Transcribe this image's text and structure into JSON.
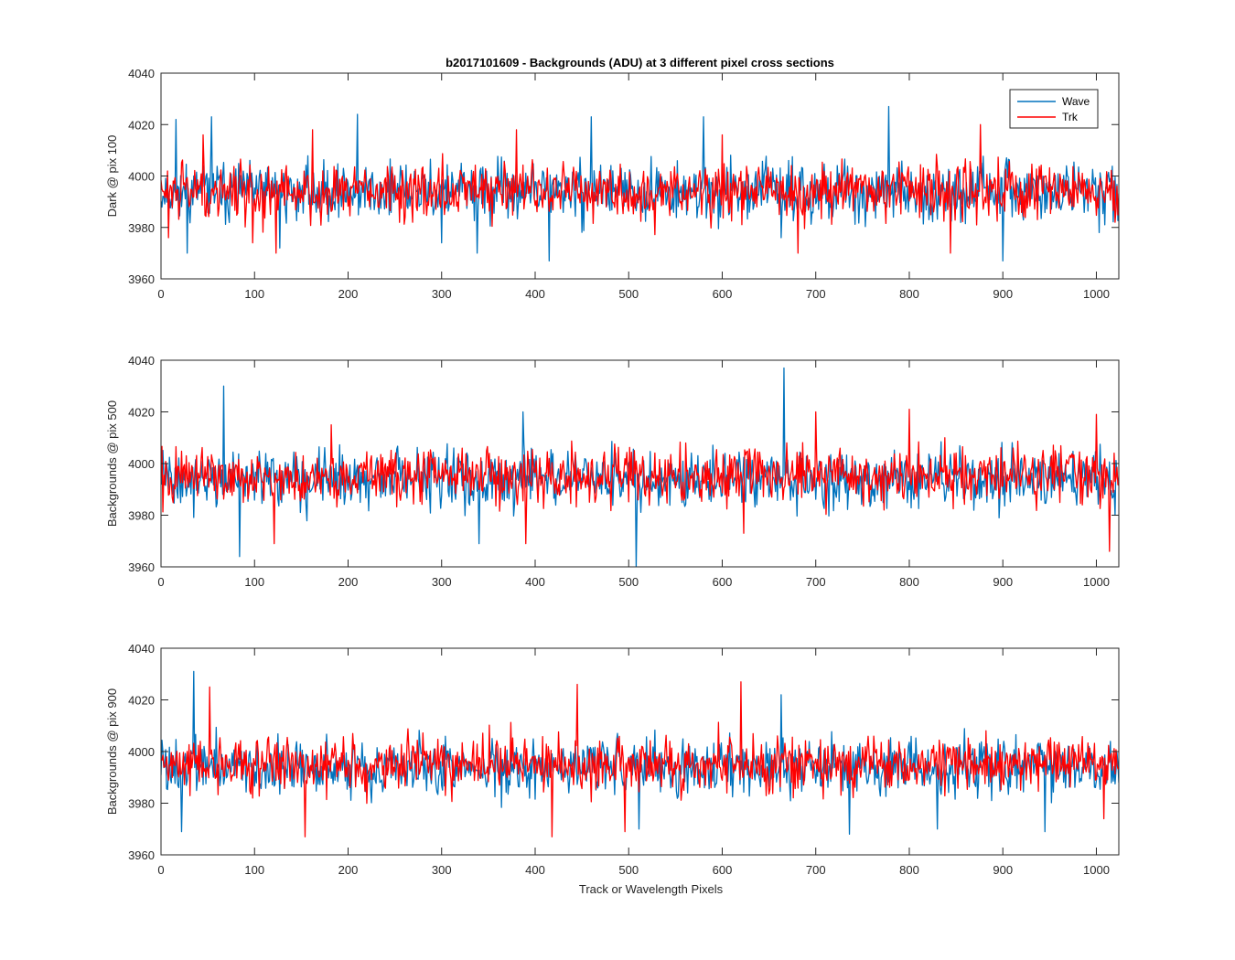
{
  "chart_data": [
    {
      "type": "line",
      "title": "b2017101609 - Backgrounds (ADU) at 3 different pixel cross sections",
      "xlabel": "",
      "ylabel": "Dark @ pix 100",
      "xlim": [
        0,
        1024
      ],
      "ylim": [
        3960,
        4040
      ],
      "xticks": [
        0,
        100,
        200,
        300,
        400,
        500,
        600,
        700,
        800,
        900,
        1000
      ],
      "yticks": [
        3960,
        3980,
        4000,
        4020,
        4040
      ],
      "grid": false,
      "legend_position": "top-right",
      "legend": [
        "Wave",
        "Trk"
      ],
      "series": [
        {
          "name": "Wave",
          "color": "#0072BD",
          "mean": 3994,
          "spread": 7,
          "seed": 11,
          "spikes": [
            [
              16,
              4022
            ],
            [
              28,
              3970
            ],
            [
              54,
              4023
            ],
            [
              127,
              3972
            ],
            [
              210,
              4024
            ],
            [
              300,
              3974
            ],
            [
              338,
              3970
            ],
            [
              415,
              3967
            ],
            [
              460,
              4023
            ],
            [
              580,
              4023
            ],
            [
              663,
              3976
            ],
            [
              778,
              4027
            ],
            [
              900,
              3967
            ],
            [
              1003,
              3978
            ]
          ]
        },
        {
          "name": "Trk",
          "color": "#FF0000",
          "mean": 3994,
          "spread": 7,
          "seed": 29,
          "spikes": [
            [
              8,
              3976
            ],
            [
              45,
              4016
            ],
            [
              98,
              3974
            ],
            [
              123,
              3970
            ],
            [
              162,
              4018
            ],
            [
              380,
              4018
            ],
            [
              600,
              4016
            ],
            [
              681,
              3970
            ],
            [
              844,
              3970
            ],
            [
              876,
              4020
            ],
            [
              1020,
              3982
            ]
          ]
        }
      ]
    },
    {
      "type": "line",
      "title": "",
      "xlabel": "",
      "ylabel": "Backgrounds @ pix 500",
      "xlim": [
        0,
        1024
      ],
      "ylim": [
        3960,
        4040
      ],
      "xticks": [
        0,
        100,
        200,
        300,
        400,
        500,
        600,
        700,
        800,
        900,
        1000
      ],
      "yticks": [
        3960,
        3980,
        4000,
        4020,
        4040
      ],
      "grid": false,
      "series": [
        {
          "name": "Wave",
          "color": "#0072BD",
          "mean": 3994,
          "spread": 7,
          "seed": 41,
          "spikes": [
            [
              67,
              4030
            ],
            [
              84,
              3964
            ],
            [
              340,
              3969
            ],
            [
              387,
              4020
            ],
            [
              508,
              3960
            ],
            [
              666,
              4037
            ],
            [
              1020,
              3980
            ]
          ]
        },
        {
          "name": "Trk",
          "color": "#FF0000",
          "mean": 3995,
          "spread": 7,
          "seed": 57,
          "spikes": [
            [
              121,
              3969
            ],
            [
              182,
              4015
            ],
            [
              390,
              3969
            ],
            [
              623,
              3973
            ],
            [
              700,
              4020
            ],
            [
              800,
              4021
            ],
            [
              1000,
              4019
            ],
            [
              1014,
              3966
            ]
          ]
        }
      ]
    },
    {
      "type": "line",
      "title": "",
      "xlabel": "Track or Wavelength Pixels",
      "ylabel": "Backgrounds @ pix 900",
      "xlim": [
        0,
        1024
      ],
      "ylim": [
        3960,
        4040
      ],
      "xticks": [
        0,
        100,
        200,
        300,
        400,
        500,
        600,
        700,
        800,
        900,
        1000
      ],
      "yticks": [
        3960,
        3980,
        4000,
        4020,
        4040
      ],
      "grid": false,
      "series": [
        {
          "name": "Wave",
          "color": "#0072BD",
          "mean": 3994,
          "spread": 7,
          "seed": 73,
          "spikes": [
            [
              22,
              3969
            ],
            [
              35,
              4031
            ],
            [
              511,
              3970
            ],
            [
              663,
              4022
            ],
            [
              736,
              3968
            ],
            [
              830,
              3970
            ],
            [
              945,
              3969
            ]
          ]
        },
        {
          "name": "Trk",
          "color": "#FF0000",
          "mean": 3995,
          "spread": 7,
          "seed": 89,
          "spikes": [
            [
              52,
              4025
            ],
            [
              154,
              3967
            ],
            [
              418,
              3967
            ],
            [
              445,
              4026
            ],
            [
              496,
              3969
            ],
            [
              620,
              4027
            ],
            [
              1008,
              3974
            ]
          ]
        }
      ]
    }
  ]
}
